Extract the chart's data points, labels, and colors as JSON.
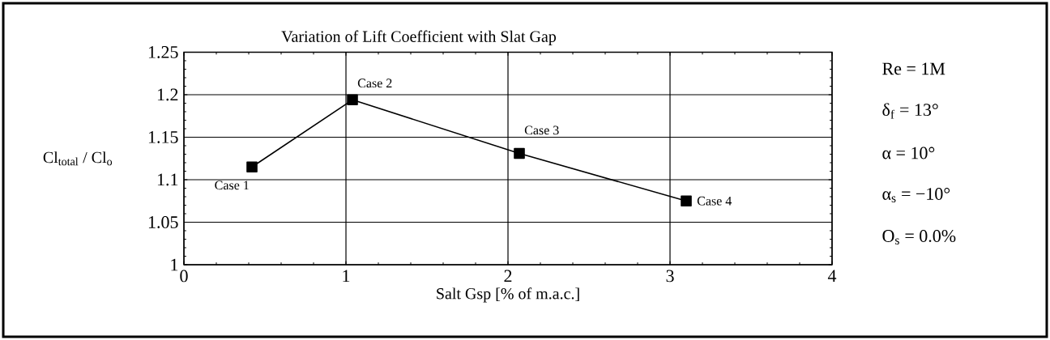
{
  "chart_data": {
    "type": "line",
    "title": "Variation of Lift Coefficient with Slat Gap",
    "xlabel": "Salt Gsp [% of m.a.c.]",
    "ylabel": "Cl$_{total}$ / Cl$_{o}$",
    "x": [
      0.42,
      1.04,
      2.07,
      3.1
    ],
    "series": [
      {
        "color": "#000000",
        "values": [
          1.115,
          1.194,
          1.131,
          1.075
        ]
      }
    ],
    "xlim": [
      0,
      4
    ],
    "xticks": [
      0,
      1,
      2,
      3,
      4
    ],
    "ylim": [
      1,
      1.25
    ],
    "yticks": [
      1,
      1.05,
      1.1,
      1.15,
      1.2,
      1.25
    ],
    "grid": true,
    "marker": "square",
    "line_style": "solid",
    "annotations": [
      {
        "text": "Case 1",
        "x": 0.42,
        "y": 1.115
      },
      {
        "text": "Case 2",
        "x": 1.04,
        "y": 1.194
      },
      {
        "text": "Case 3",
        "x": 2.07,
        "y": 1.131
      },
      {
        "text": "Case 4",
        "x": 3.1,
        "y": 1.075
      },
      "Re = 1M",
      "δ$_{f}$ = 13°",
      "α = 10°",
      "α$_{s}$ = −10°",
      "O$_{s}$ = 0.0%"
    ]
  }
}
